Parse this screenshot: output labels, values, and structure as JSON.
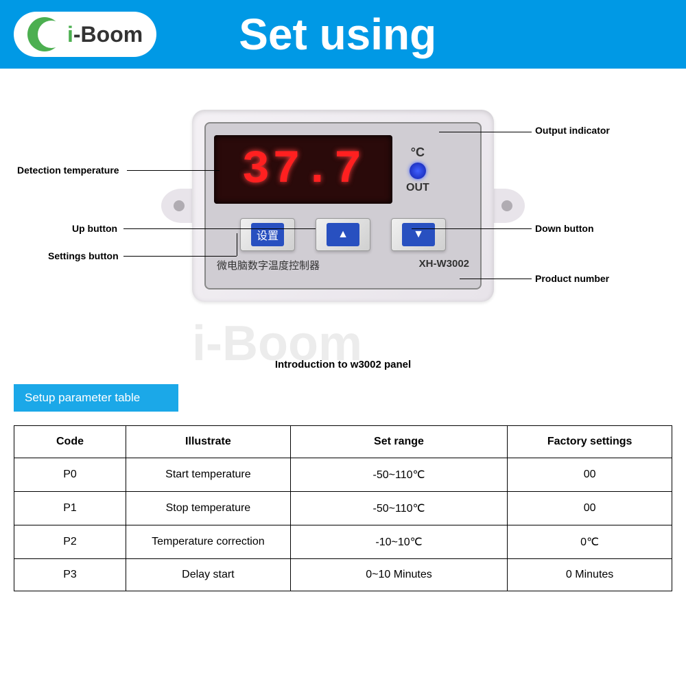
{
  "header": {
    "logo_text_prefix": "i",
    "logo_text_suffix": "-Boom",
    "title": "Set using"
  },
  "device": {
    "display_value": "37.7",
    "celsius_label": "°C",
    "out_label": "OUT",
    "settings_btn": "设置",
    "chinese_label": "微电脑数字温度控制器",
    "product_number": "XH-W3002"
  },
  "annotations": {
    "output_indicator": "Output indicator",
    "detection_temp": "Detection temperature",
    "up_button": "Up button",
    "settings_button": "Settings button",
    "down_button": "Down button",
    "product_number": "Product number",
    "caption": "Introduction to w3002 panel"
  },
  "table": {
    "section_title": "Setup parameter table",
    "columns": [
      "Code",
      "Illustrate",
      "Set range",
      "Factory settings"
    ],
    "rows": [
      [
        "P0",
        "Start temperature",
        "-50~110℃",
        "00"
      ],
      [
        "P1",
        "Stop temperature",
        "-50~110℃",
        "00"
      ],
      [
        "P2",
        "Temperature correction",
        "-10~10℃",
        "0℃"
      ],
      [
        "P3",
        "Delay start",
        "0~10 Minutes",
        "0 Minutes"
      ]
    ]
  },
  "watermark": "i-Boom",
  "colors": {
    "header_bg": "#0099e5",
    "led_color": "#ff2020",
    "button_blue": "#2850c0",
    "indicator_blue": "#4060ff"
  }
}
